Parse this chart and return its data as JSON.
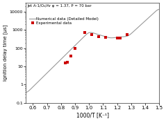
{
  "title": "Jet A-1/O₂/Ar φ = 1.37, P = 70 bar",
  "xlabel": "1000/T [K⁻¹]",
  "ylabel": "Ignition delay time [μs]",
  "xlim": [
    0.55,
    1.5
  ],
  "ylim_log": [
    0.1,
    30000
  ],
  "legend_numerical": "Numerical data (Detailed Model)",
  "legend_experimental": "Experimental data",
  "exp_x": [
    0.83,
    0.845,
    0.87,
    0.9,
    0.97,
    1.02,
    1.07,
    1.12,
    1.2,
    1.22,
    1.27
  ],
  "exp_y": [
    15,
    17,
    38,
    100,
    700,
    550,
    430,
    400,
    360,
    370,
    550
  ],
  "line_color": "#999999",
  "exp_color": "#cc0000",
  "bg_color": "#ffffff"
}
